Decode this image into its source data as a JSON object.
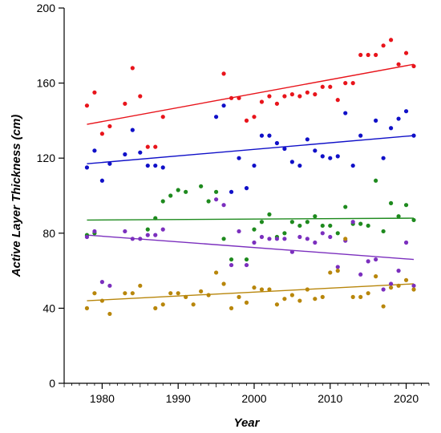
{
  "chart_data": {
    "type": "scatter",
    "title": "",
    "xlabel": "Year",
    "ylabel": "Active Layer Thickness (cm)",
    "xlim": [
      1975,
      2023
    ],
    "ylim": [
      0,
      200
    ],
    "x_ticks": [
      1980,
      1990,
      2000,
      2010,
      2020
    ],
    "y_ticks": [
      0,
      40,
      80,
      120,
      160,
      200
    ],
    "grid": false,
    "legend": "none",
    "series": [
      {
        "color": "#e8141b",
        "trend": {
          "x": [
            1978,
            2021
          ],
          "y": [
            138,
            170
          ]
        },
        "points": [
          [
            1978,
            148
          ],
          [
            1979,
            155
          ],
          [
            1980,
            133
          ],
          [
            1981,
            137
          ],
          [
            1983,
            149
          ],
          [
            1984,
            168
          ],
          [
            1985,
            153
          ],
          [
            1986,
            126
          ],
          [
            1987,
            126
          ],
          [
            1988,
            142
          ],
          [
            1996,
            165
          ],
          [
            1997,
            152
          ],
          [
            1998,
            152
          ],
          [
            1999,
            140
          ],
          [
            2000,
            142
          ],
          [
            2001,
            150
          ],
          [
            2002,
            153
          ],
          [
            2003,
            149
          ],
          [
            2004,
            153
          ],
          [
            2005,
            154
          ],
          [
            2006,
            153
          ],
          [
            2007,
            155
          ],
          [
            2008,
            154
          ],
          [
            2009,
            158
          ],
          [
            2010,
            158
          ],
          [
            2011,
            151
          ],
          [
            2012,
            160
          ],
          [
            2013,
            160
          ],
          [
            2014,
            175
          ],
          [
            2015,
            175
          ],
          [
            2016,
            175
          ],
          [
            2017,
            180
          ],
          [
            2018,
            183
          ],
          [
            2019,
            170
          ],
          [
            2020,
            176
          ],
          [
            2021,
            169
          ]
        ]
      },
      {
        "color": "#1010c8",
        "trend": {
          "x": [
            1978,
            2021
          ],
          "y": [
            117,
            132
          ]
        },
        "points": [
          [
            1978,
            115
          ],
          [
            1979,
            124
          ],
          [
            1980,
            108
          ],
          [
            1981,
            117
          ],
          [
            1983,
            122
          ],
          [
            1984,
            135
          ],
          [
            1985,
            123
          ],
          [
            1986,
            116
          ],
          [
            1987,
            116
          ],
          [
            1988,
            115
          ],
          [
            1995,
            142
          ],
          [
            1996,
            148
          ],
          [
            1997,
            102
          ],
          [
            1998,
            120
          ],
          [
            1999,
            104
          ],
          [
            2000,
            116
          ],
          [
            2001,
            132
          ],
          [
            2002,
            132
          ],
          [
            2003,
            128
          ],
          [
            2004,
            125
          ],
          [
            2005,
            118
          ],
          [
            2006,
            116
          ],
          [
            2007,
            130
          ],
          [
            2008,
            124
          ],
          [
            2009,
            121
          ],
          [
            2010,
            120
          ],
          [
            2011,
            121
          ],
          [
            2012,
            144
          ],
          [
            2013,
            116
          ],
          [
            2014,
            132
          ],
          [
            2016,
            140
          ],
          [
            2017,
            120
          ],
          [
            2018,
            136
          ],
          [
            2019,
            141
          ],
          [
            2020,
            145
          ],
          [
            2021,
            132
          ]
        ]
      },
      {
        "color": "#1e8a1e",
        "trend": {
          "x": [
            1978,
            2021
          ],
          "y": [
            87,
            88
          ]
        },
        "points": [
          [
            1978,
            79
          ],
          [
            1979,
            80
          ],
          [
            1986,
            82
          ],
          [
            1987,
            88
          ],
          [
            1988,
            97
          ],
          [
            1989,
            100
          ],
          [
            1990,
            103
          ],
          [
            1991,
            102
          ],
          [
            1993,
            105
          ],
          [
            1994,
            97
          ],
          [
            1995,
            102
          ],
          [
            1996,
            77
          ],
          [
            1997,
            66
          ],
          [
            1999,
            66
          ],
          [
            2000,
            82
          ],
          [
            2001,
            86
          ],
          [
            2002,
            90
          ],
          [
            2003,
            78
          ],
          [
            2004,
            80
          ],
          [
            2005,
            86
          ],
          [
            2006,
            84
          ],
          [
            2007,
            86
          ],
          [
            2008,
            89
          ],
          [
            2009,
            84
          ],
          [
            2010,
            84
          ],
          [
            2011,
            80
          ],
          [
            2012,
            94
          ],
          [
            2013,
            85
          ],
          [
            2014,
            85
          ],
          [
            2015,
            84
          ],
          [
            2016,
            108
          ],
          [
            2017,
            81
          ],
          [
            2018,
            96
          ],
          [
            2019,
            89
          ],
          [
            2020,
            95
          ],
          [
            2021,
            87
          ]
        ]
      },
      {
        "color": "#7b2fbe",
        "trend": {
          "x": [
            1978,
            2021
          ],
          "y": [
            79,
            66
          ]
        },
        "points": [
          [
            1978,
            78
          ],
          [
            1979,
            81
          ],
          [
            1980,
            54
          ],
          [
            1981,
            52
          ],
          [
            1983,
            81
          ],
          [
            1984,
            77
          ],
          [
            1985,
            77
          ],
          [
            1986,
            79
          ],
          [
            1987,
            79
          ],
          [
            1988,
            82
          ],
          [
            1995,
            98
          ],
          [
            1996,
            95
          ],
          [
            1997,
            63
          ],
          [
            1998,
            81
          ],
          [
            1999,
            63
          ],
          [
            2000,
            75
          ],
          [
            2001,
            78
          ],
          [
            2002,
            77
          ],
          [
            2003,
            77
          ],
          [
            2004,
            77
          ],
          [
            2005,
            70
          ],
          [
            2006,
            78
          ],
          [
            2007,
            77
          ],
          [
            2008,
            75
          ],
          [
            2009,
            80
          ],
          [
            2010,
            78
          ],
          [
            2011,
            62
          ],
          [
            2012,
            76
          ],
          [
            2013,
            86
          ],
          [
            2014,
            58
          ],
          [
            2015,
            65
          ],
          [
            2016,
            66
          ],
          [
            2017,
            50
          ],
          [
            2018,
            53
          ],
          [
            2019,
            60
          ],
          [
            2020,
            75
          ],
          [
            2021,
            52
          ]
        ]
      },
      {
        "color": "#b8860b",
        "trend": {
          "x": [
            1978,
            2021
          ],
          "y": [
            44,
            53
          ]
        },
        "points": [
          [
            1978,
            40
          ],
          [
            1979,
            48
          ],
          [
            1980,
            44
          ],
          [
            1981,
            37
          ],
          [
            1983,
            48
          ],
          [
            1984,
            48
          ],
          [
            1985,
            52
          ],
          [
            1987,
            40
          ],
          [
            1988,
            42
          ],
          [
            1989,
            48
          ],
          [
            1990,
            48
          ],
          [
            1991,
            46
          ],
          [
            1992,
            42
          ],
          [
            1993,
            49
          ],
          [
            1994,
            47
          ],
          [
            1995,
            59
          ],
          [
            1996,
            53
          ],
          [
            1997,
            40
          ],
          [
            1998,
            46
          ],
          [
            1999,
            43
          ],
          [
            2000,
            51
          ],
          [
            2001,
            50
          ],
          [
            2002,
            50
          ],
          [
            2003,
            42
          ],
          [
            2004,
            45
          ],
          [
            2005,
            47
          ],
          [
            2006,
            44
          ],
          [
            2007,
            50
          ],
          [
            2008,
            45
          ],
          [
            2009,
            46
          ],
          [
            2010,
            59
          ],
          [
            2011,
            60
          ],
          [
            2012,
            77
          ],
          [
            2013,
            46
          ],
          [
            2014,
            46
          ],
          [
            2015,
            48
          ],
          [
            2016,
            57
          ],
          [
            2017,
            41
          ],
          [
            2018,
            51
          ],
          [
            2019,
            52
          ],
          [
            2020,
            55
          ],
          [
            2021,
            50
          ]
        ]
      }
    ]
  }
}
